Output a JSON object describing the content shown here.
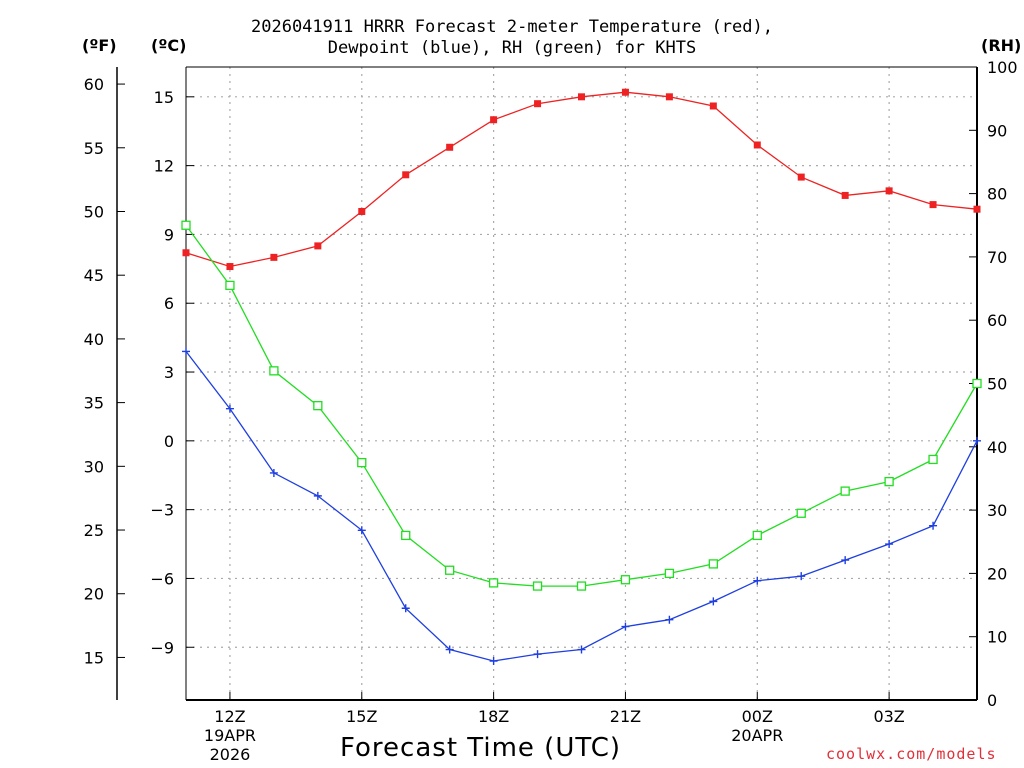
{
  "chart_data": {
    "type": "line",
    "title_line1": "2026041911 HRRR Forecast 2-meter Temperature (red),",
    "title_line2": "Dewpoint (blue), RH (green) for KHTS",
    "xlabel": "Forecast Time (UTC)",
    "credit": "coolwx.com/models",
    "units": {
      "left_f": "(ºF)",
      "left_c": "(ºC)",
      "right": "(RH)"
    },
    "hours": [
      11,
      12,
      13,
      14,
      15,
      16,
      17,
      18,
      19,
      20,
      21,
      22,
      23,
      24,
      25,
      26,
      27,
      28,
      29
    ],
    "xlim": [
      11,
      29
    ],
    "x_ticks": [
      {
        "hour": 12,
        "label": "12Z",
        "sub1": "19APR",
        "sub2": "2026"
      },
      {
        "hour": 15,
        "label": "15Z",
        "sub1": "",
        "sub2": ""
      },
      {
        "hour": 18,
        "label": "18Z",
        "sub1": "",
        "sub2": ""
      },
      {
        "hour": 21,
        "label": "21Z",
        "sub1": "",
        "sub2": ""
      },
      {
        "hour": 24,
        "label": "00Z",
        "sub1": "20APR",
        "sub2": ""
      },
      {
        "hour": 27,
        "label": "03Z",
        "sub1": "",
        "sub2": ""
      }
    ],
    "celsius_axis": {
      "ylim": [
        -11.3,
        16.3
      ],
      "ticks": [
        15,
        12,
        9,
        6,
        3,
        0,
        -3,
        -6,
        -9
      ],
      "tick_labels": [
        "15",
        "12",
        "9",
        "6",
        "3",
        "0",
        "−3",
        "−6",
        "−9"
      ]
    },
    "fahrenheit_axis": {
      "ticks": [
        60,
        55,
        50,
        45,
        40,
        35,
        30,
        25,
        20,
        15
      ],
      "tick_labels": [
        "60",
        "55",
        "50",
        "45",
        "40",
        "35",
        "30",
        "25",
        "20",
        "15"
      ]
    },
    "rh_axis": {
      "ylim": [
        0,
        100
      ],
      "ticks": [
        100,
        90,
        80,
        70,
        60,
        50,
        40,
        30,
        20,
        10,
        0
      ],
      "tick_labels": [
        "100",
        "90",
        "80",
        "70",
        "60",
        "50",
        "40",
        "30",
        "20",
        "10",
        "0"
      ]
    },
    "series": [
      {
        "name": "2-meter Temperature",
        "axis": "celsius",
        "color": "#ee2222",
        "marker": "filled-square",
        "values": [
          8.2,
          7.6,
          8.0,
          8.5,
          10.0,
          11.6,
          12.8,
          14.0,
          14.7,
          15.0,
          15.2,
          15.0,
          14.6,
          12.9,
          11.5,
          10.7,
          10.9,
          10.3,
          10.1
        ]
      },
      {
        "name": "Dewpoint",
        "axis": "celsius",
        "color": "#1f3fe0",
        "marker": "plus",
        "values": [
          3.9,
          1.4,
          -1.4,
          -2.4,
          -3.9,
          -7.3,
          -9.1,
          -9.6,
          -9.3,
          -9.1,
          -8.1,
          -7.8,
          -7.0,
          -6.1,
          -5.9,
          -5.2,
          -4.5,
          -3.7,
          0.0
        ]
      },
      {
        "name": "RH",
        "axis": "rh",
        "color": "#22dd22",
        "marker": "hollow-square",
        "values": [
          75,
          65.5,
          52,
          46.5,
          37.5,
          26,
          20.5,
          18.5,
          18,
          18,
          19,
          20,
          21.5,
          26,
          29.5,
          33,
          34.5,
          38,
          50
        ]
      }
    ]
  }
}
